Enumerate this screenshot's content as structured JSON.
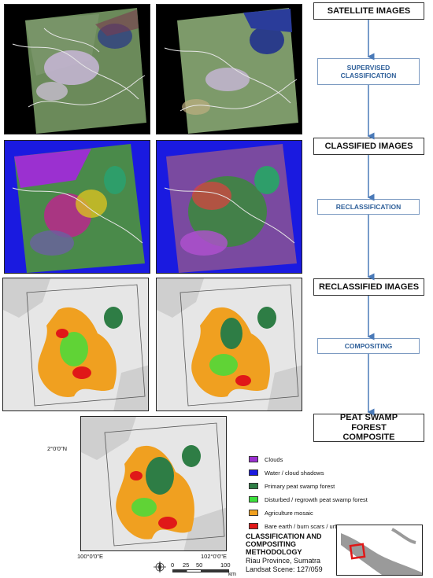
{
  "flow": {
    "satellite": "SATELLITE IMAGES",
    "supervised": "SUPERVISED CLASSIFICATION",
    "classified": "CLASSIFIED IMAGES",
    "reclassification": "RECLASSIFICATION",
    "reclassified": "RECLASSIFIED IMAGES",
    "compositing": "COMPOSITING",
    "composite": "PEAT SWAMP FOREST COMPOSITE"
  },
  "legend": [
    {
      "label": "Clouds",
      "color": "#9b30d0"
    },
    {
      "label": "Water / cloud shadows",
      "color": "#1a1ae0"
    },
    {
      "label": "Primary peat swamp forest",
      "color": "#2e7d45"
    },
    {
      "label": "Disturbed / regrowth peat swamp forest",
      "color": "#3ce03c"
    },
    {
      "label": "Agriculture mosaic",
      "color": "#f0a020"
    },
    {
      "label": "Bare earth / burn scars / urban areas",
      "color": "#e01818"
    }
  ],
  "map_labels": {
    "lat": "2°0'0\"N",
    "lon_left": "100°0'0\"E",
    "lon_right": "102°0'0\"E"
  },
  "scale": {
    "t0": "0",
    "t1": "25",
    "t2": "50",
    "t3": "100",
    "unit": "km"
  },
  "info": {
    "title1": "CLASSIFICATION AND",
    "title2": "COMPOSITING",
    "title3": "METHODOLOGY",
    "line1": "Riau Province, Sumatra",
    "line2": "Landsat Scene: 127/059"
  }
}
